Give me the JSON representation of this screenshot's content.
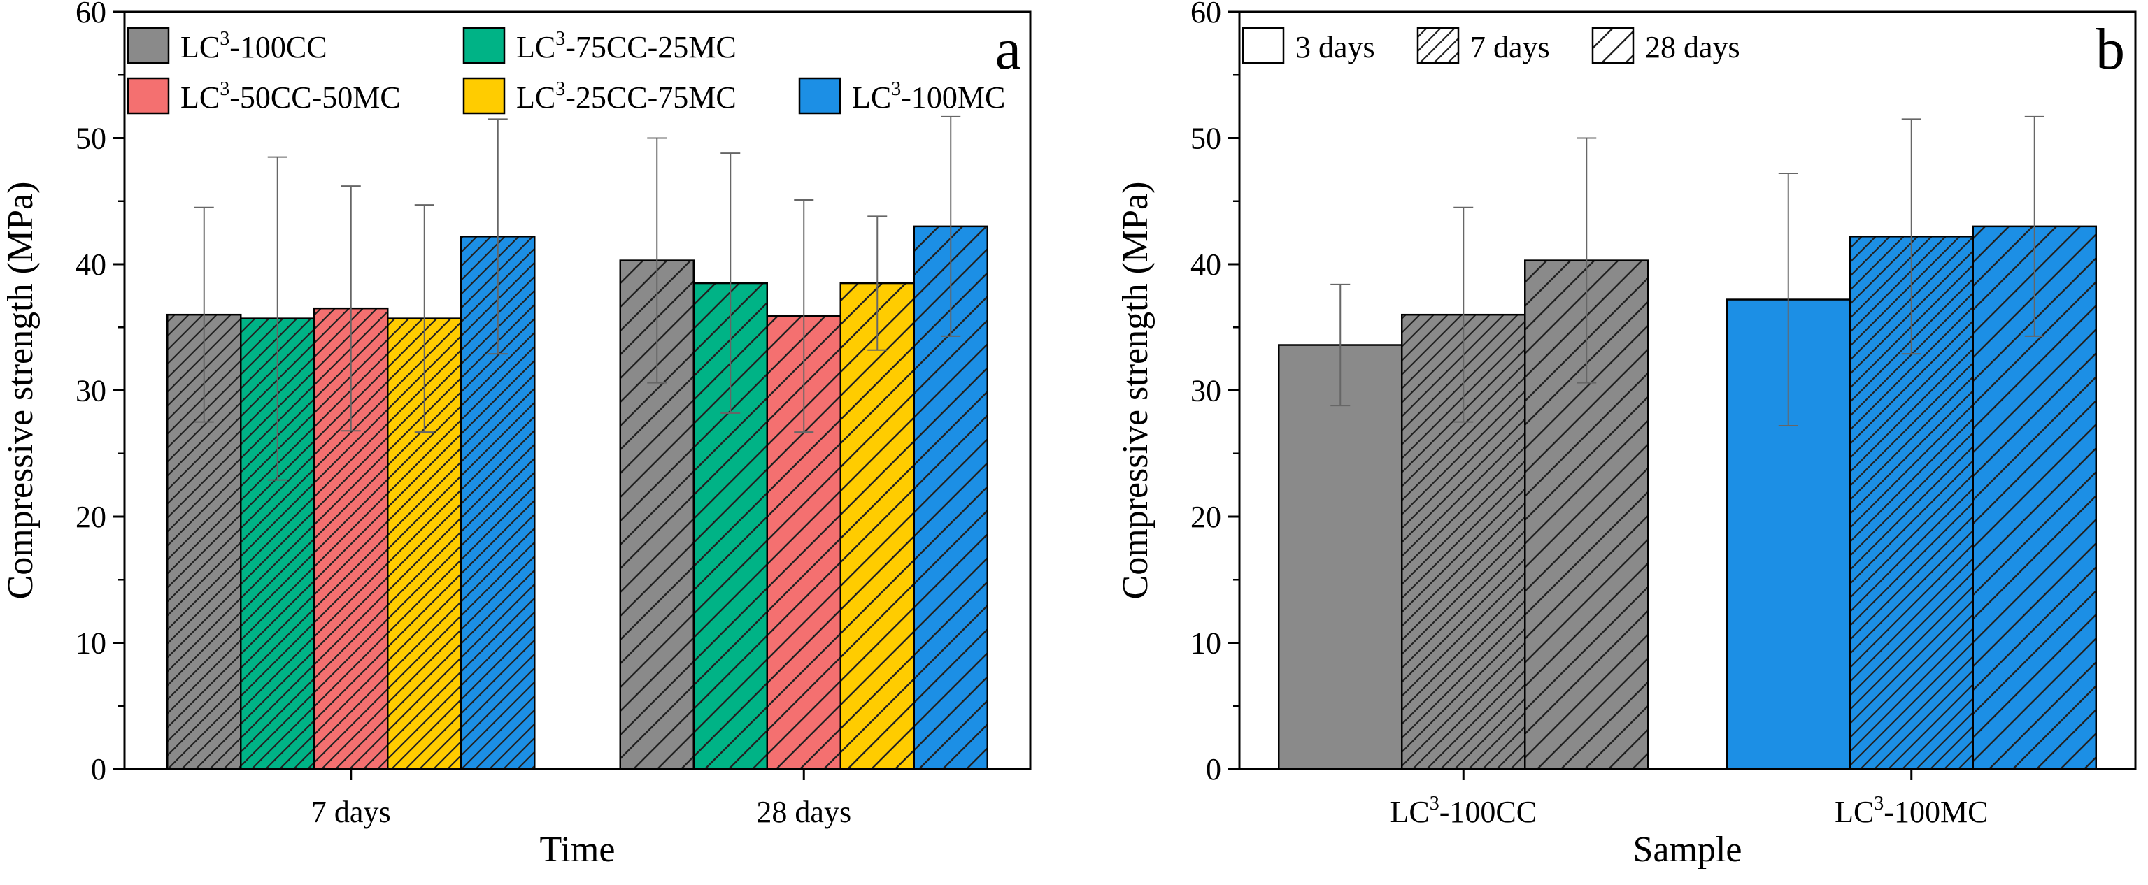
{
  "chart_data": [
    {
      "type": "bar",
      "panel_label": "a",
      "title": "",
      "xlabel": "Time",
      "ylabel": "Compressive strength (MPa)",
      "ylim": [
        0,
        60
      ],
      "yticks": [
        "0",
        "10",
        "20",
        "30",
        "40",
        "50",
        "60"
      ],
      "categories": [
        "7 days",
        "28 days"
      ],
      "legend_position": "top-left",
      "series": [
        {
          "name": "LC³-100CC",
          "name_parts": [
            "LC",
            "3",
            "-100CC"
          ],
          "color": "#8a8a8a",
          "values": [
            36.0,
            40.3
          ],
          "errors": [
            8.5,
            9.7
          ]
        },
        {
          "name": "LC³-75CC-25MC",
          "name_parts": [
            "LC",
            "3",
            "-75CC-25MC"
          ],
          "color": "#00b386",
          "values": [
            35.7,
            38.5
          ],
          "errors": [
            12.8,
            10.3
          ]
        },
        {
          "name": "LC³-50CC-50MC",
          "name_parts": [
            "LC",
            "3",
            "-50CC-50MC"
          ],
          "color": "#f47070",
          "values": [
            36.5,
            35.9
          ],
          "errors": [
            9.7,
            9.2
          ]
        },
        {
          "name": "LC³-25CC-75MC",
          "name_parts": [
            "LC",
            "3",
            "-25CC-75MC"
          ],
          "color": "#ffcc00",
          "values": [
            35.7,
            38.5
          ],
          "errors": [
            9.0,
            5.3
          ]
        },
        {
          "name": "LC³-100MC",
          "name_parts": [
            "LC",
            "3",
            "-100MC"
          ],
          "color": "#1c8fe5",
          "values": [
            42.2,
            43.0
          ],
          "errors": [
            9.3,
            8.7
          ]
        }
      ]
    },
    {
      "type": "bar",
      "panel_label": "b",
      "title": "",
      "xlabel": "Sample",
      "ylabel": "Compressive strength (MPa)",
      "ylim": [
        0,
        60
      ],
      "yticks": [
        "0",
        "10",
        "20",
        "30",
        "40",
        "50",
        "60"
      ],
      "categories": [
        "LC³-100CC",
        "LC³-100MC"
      ],
      "category_parts": [
        [
          "LC",
          "3",
          "-100CC"
        ],
        [
          "LC",
          "3",
          "-100MC"
        ]
      ],
      "category_colors": [
        "#8a8a8a",
        "#1c8fe5"
      ],
      "legend_position": "top-left",
      "series": [
        {
          "name": "3 days",
          "hatch": "none",
          "values": [
            33.6,
            37.2
          ],
          "errors": [
            4.8,
            10.0
          ]
        },
        {
          "name": "7 days",
          "hatch": "dense",
          "values": [
            36.0,
            42.2
          ],
          "errors": [
            8.5,
            9.3
          ]
        },
        {
          "name": "28 days",
          "hatch": "sparse",
          "values": [
            40.3,
            43.0
          ],
          "errors": [
            9.7,
            8.7
          ]
        }
      ]
    }
  ]
}
